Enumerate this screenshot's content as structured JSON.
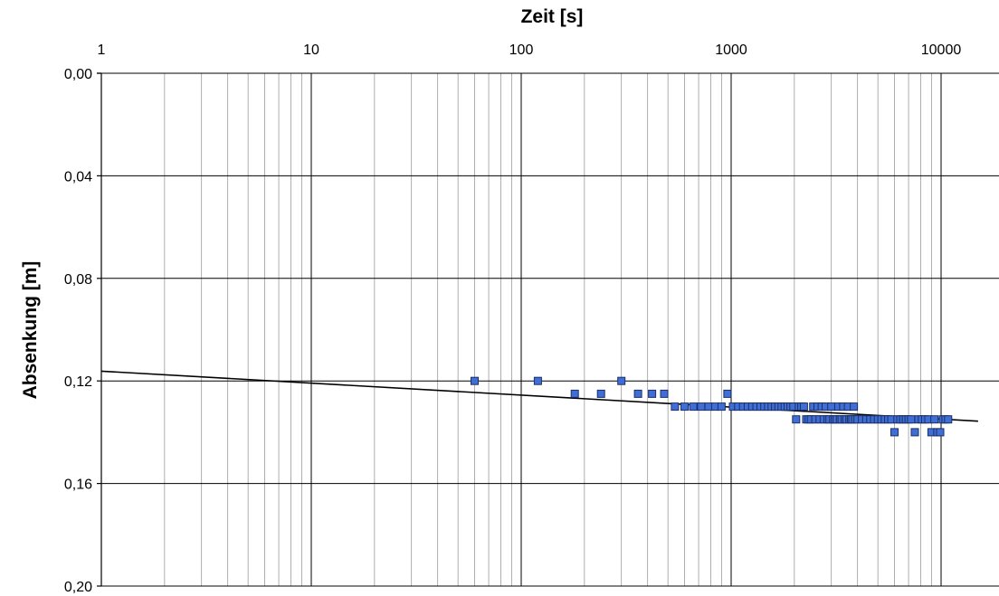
{
  "chart_data": {
    "type": "scatter",
    "xlabel": "Zeit [s]",
    "ylabel": "Absenkung [m]",
    "xscale": "log",
    "xlim": [
      1,
      15000
    ],
    "ylim": [
      0.0,
      0.2
    ],
    "yaxis_inverted": true,
    "grid": true,
    "x_tick_labels": [
      "1",
      "10",
      "100",
      "1000",
      "10000"
    ],
    "y_tick_labels": [
      "0,00",
      "0,04",
      "0,08",
      "0,12",
      "0,16",
      "0,20"
    ],
    "x_ticks": [
      1,
      10,
      100,
      1000,
      10000
    ],
    "y_ticks": [
      0.0,
      0.04,
      0.08,
      0.12,
      0.16,
      0.2
    ],
    "marker_color": "#3f6fd6",
    "line_color": "#000000",
    "series": [
      {
        "type": "scatter",
        "points": [
          [
            60,
            0.12
          ],
          [
            120,
            0.12
          ],
          [
            180,
            0.125
          ],
          [
            240,
            0.125
          ],
          [
            300,
            0.12
          ],
          [
            360,
            0.125
          ],
          [
            420,
            0.125
          ],
          [
            480,
            0.125
          ],
          [
            540,
            0.13
          ],
          [
            600,
            0.13
          ],
          [
            660,
            0.13
          ],
          [
            720,
            0.13
          ],
          [
            780,
            0.13
          ],
          [
            840,
            0.13
          ],
          [
            900,
            0.13
          ],
          [
            960,
            0.125
          ],
          [
            1020,
            0.13
          ],
          [
            1080,
            0.13
          ],
          [
            1140,
            0.13
          ],
          [
            1200,
            0.13
          ],
          [
            1260,
            0.13
          ],
          [
            1320,
            0.13
          ],
          [
            1380,
            0.13
          ],
          [
            1440,
            0.13
          ],
          [
            1500,
            0.13
          ],
          [
            1560,
            0.13
          ],
          [
            1620,
            0.13
          ],
          [
            1680,
            0.13
          ],
          [
            1740,
            0.13
          ],
          [
            1800,
            0.13
          ],
          [
            1860,
            0.13
          ],
          [
            1920,
            0.13
          ],
          [
            1980,
            0.13
          ],
          [
            2040,
            0.135
          ],
          [
            2100,
            0.13
          ],
          [
            2160,
            0.13
          ],
          [
            2220,
            0.13
          ],
          [
            2280,
            0.135
          ],
          [
            2340,
            0.135
          ],
          [
            2400,
            0.135
          ],
          [
            2460,
            0.13
          ],
          [
            2520,
            0.135
          ],
          [
            2580,
            0.13
          ],
          [
            2640,
            0.135
          ],
          [
            2700,
            0.13
          ],
          [
            2760,
            0.135
          ],
          [
            2820,
            0.13
          ],
          [
            2880,
            0.135
          ],
          [
            2940,
            0.135
          ],
          [
            3000,
            0.13
          ],
          [
            3060,
            0.135
          ],
          [
            3120,
            0.135
          ],
          [
            3180,
            0.135
          ],
          [
            3240,
            0.13
          ],
          [
            3300,
            0.135
          ],
          [
            3360,
            0.135
          ],
          [
            3420,
            0.13
          ],
          [
            3480,
            0.135
          ],
          [
            3540,
            0.135
          ],
          [
            3600,
            0.13
          ],
          [
            3660,
            0.135
          ],
          [
            3720,
            0.135
          ],
          [
            3780,
            0.135
          ],
          [
            3840,
            0.13
          ],
          [
            3900,
            0.135
          ],
          [
            4000,
            0.135
          ],
          [
            4200,
            0.135
          ],
          [
            4400,
            0.135
          ],
          [
            4600,
            0.135
          ],
          [
            4800,
            0.135
          ],
          [
            5000,
            0.135
          ],
          [
            5200,
            0.135
          ],
          [
            5400,
            0.135
          ],
          [
            5600,
            0.135
          ],
          [
            5800,
            0.135
          ],
          [
            6000,
            0.14
          ],
          [
            6200,
            0.135
          ],
          [
            6400,
            0.135
          ],
          [
            6600,
            0.135
          ],
          [
            6800,
            0.135
          ],
          [
            7000,
            0.135
          ],
          [
            7200,
            0.135
          ],
          [
            7500,
            0.14
          ],
          [
            7800,
            0.135
          ],
          [
            8100,
            0.135
          ],
          [
            8400,
            0.135
          ],
          [
            8700,
            0.135
          ],
          [
            9000,
            0.14
          ],
          [
            9300,
            0.135
          ],
          [
            9600,
            0.14
          ],
          [
            9900,
            0.14
          ],
          [
            10200,
            0.135
          ],
          [
            10500,
            0.135
          ],
          [
            10800,
            0.135
          ]
        ]
      },
      {
        "type": "line",
        "points": [
          [
            1,
            0.1162
          ],
          [
            15000,
            0.1357
          ]
        ]
      }
    ]
  }
}
